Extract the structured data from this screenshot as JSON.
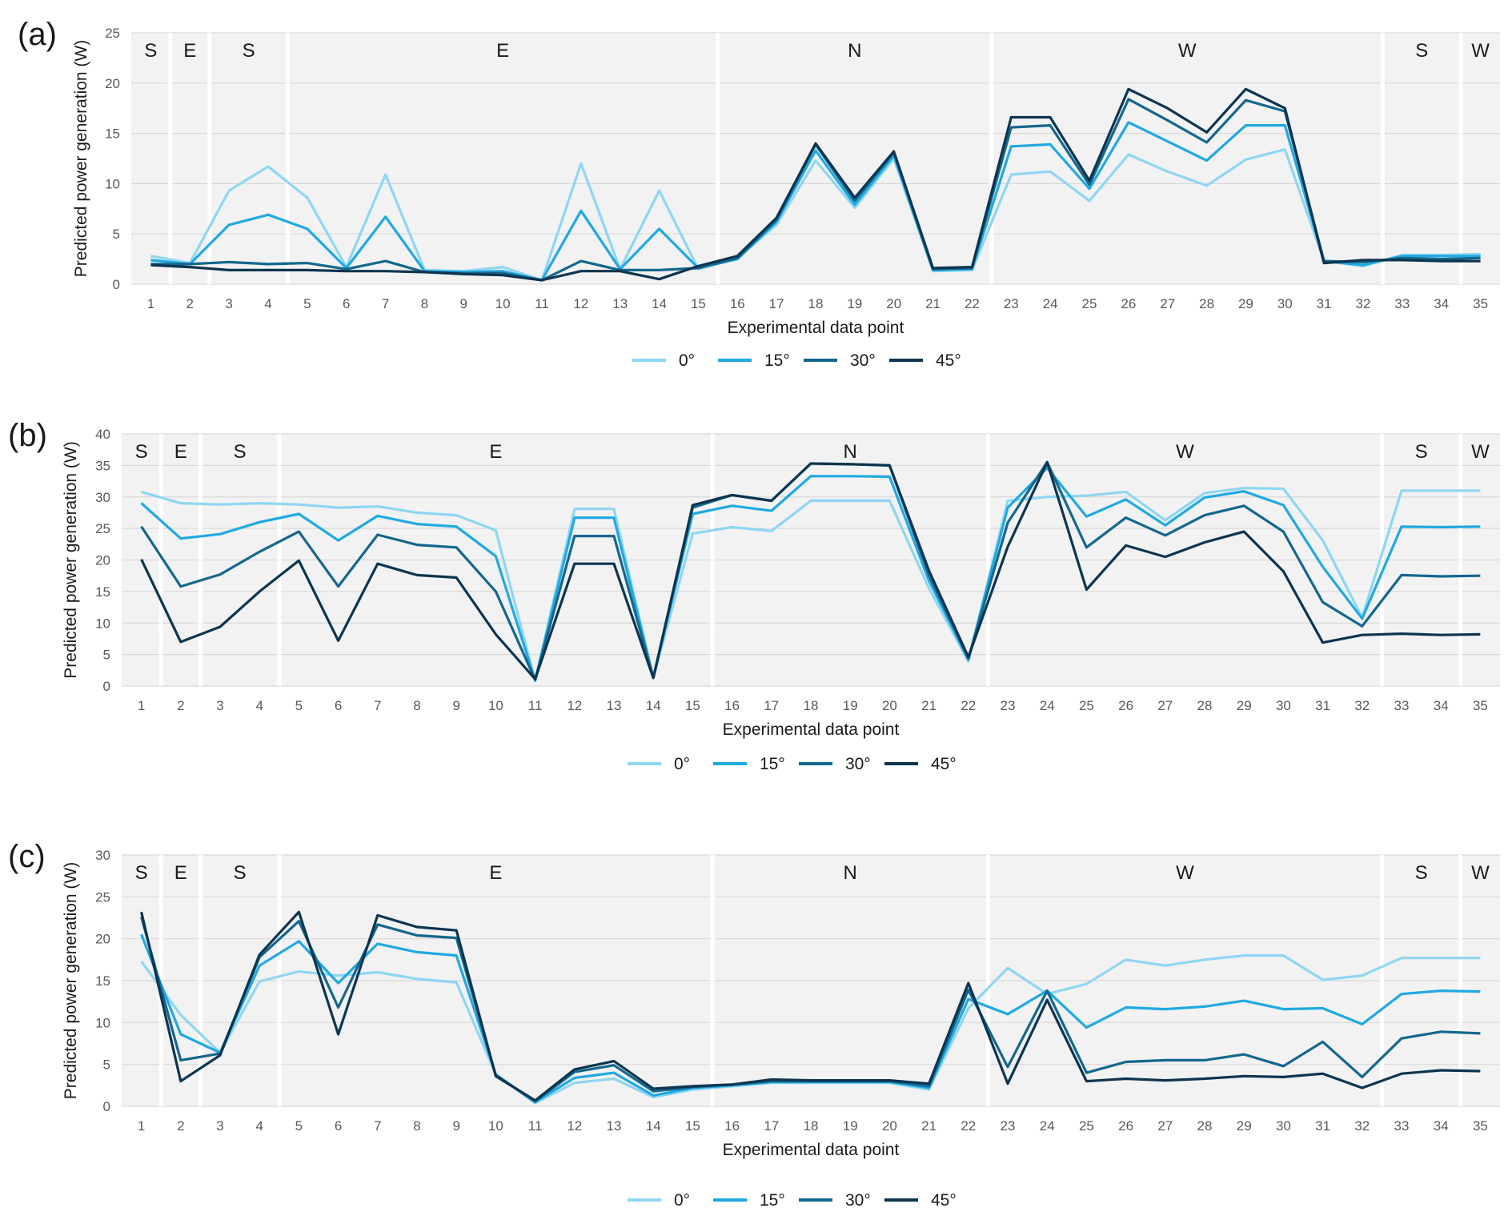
{
  "figure": {
    "legend_labels": [
      "0°",
      "15°",
      "30°",
      "45°"
    ],
    "colors": {
      "series": [
        "#8fd6f2",
        "#20a9e1",
        "#14678c",
        "#0d3550"
      ],
      "shade": "#f2f2f2",
      "grid": "#d9d9d9",
      "text": "#595959"
    }
  },
  "chart_data": [
    {
      "panel_label": "(a)",
      "type": "line",
      "xlabel": "Experimental data point",
      "ylabel": "Predicted power generation (W)",
      "ylim": [
        0,
        25
      ],
      "yticks": [
        0,
        5,
        10,
        15,
        20,
        25
      ],
      "grid": true,
      "legend": "bottom",
      "categories": [
        1,
        2,
        3,
        4,
        5,
        6,
        7,
        8,
        9,
        10,
        11,
        12,
        13,
        14,
        15,
        16,
        17,
        18,
        19,
        20,
        21,
        22,
        23,
        24,
        25,
        26,
        27,
        28,
        29,
        30,
        31,
        32,
        33,
        34,
        35
      ],
      "orientation_regions": [
        {
          "label": "S",
          "from": 1,
          "to": 2
        },
        {
          "label": "E",
          "from": 2,
          "to": 3
        },
        {
          "label": "S",
          "from": 3,
          "to": 5
        },
        {
          "label": "E",
          "from": 5,
          "to": 16
        },
        {
          "label": "N",
          "from": 16,
          "to": 23
        },
        {
          "label": "W",
          "from": 23,
          "to": 33
        },
        {
          "label": "S",
          "from": 33,
          "to": 35
        },
        {
          "label": "W",
          "from": 35,
          "to": 35
        }
      ],
      "series": [
        {
          "name": "0°",
          "values": [
            2.8,
            2.1,
            9.3,
            11.7,
            8.6,
            1.7,
            10.9,
            1.4,
            1.3,
            1.7,
            0.4,
            12.0,
            1.5,
            9.3,
            1.5,
            2.6,
            5.9,
            12.3,
            7.6,
            12.5,
            1.3,
            1.4,
            10.9,
            11.2,
            8.3,
            12.9,
            11.2,
            9.8,
            12.4,
            13.4,
            2.3,
            1.8,
            2.9,
            2.9,
            3.0
          ]
        },
        {
          "name": "15°",
          "values": [
            2.4,
            2.0,
            5.9,
            6.9,
            5.5,
            1.6,
            6.7,
            1.3,
            1.2,
            1.3,
            0.4,
            7.3,
            1.5,
            5.5,
            1.6,
            2.5,
            6.2,
            13.3,
            7.9,
            12.8,
            1.4,
            1.5,
            13.7,
            13.9,
            9.5,
            16.1,
            14.2,
            12.3,
            15.8,
            15.8,
            2.3,
            1.9,
            2.8,
            2.8,
            2.8
          ]
        },
        {
          "name": "30°",
          "values": [
            2.0,
            2.0,
            2.2,
            2.0,
            2.1,
            1.5,
            2.3,
            1.2,
            1.1,
            1.1,
            0.4,
            2.3,
            1.4,
            1.4,
            1.6,
            2.6,
            6.4,
            13.9,
            8.3,
            13.1,
            1.5,
            1.6,
            15.6,
            15.8,
            9.9,
            18.4,
            16.3,
            14.1,
            18.3,
            17.2,
            2.3,
            2.2,
            2.6,
            2.5,
            2.6
          ]
        },
        {
          "name": "45°",
          "values": [
            1.9,
            1.7,
            1.4,
            1.4,
            1.4,
            1.3,
            1.3,
            1.2,
            1.0,
            0.9,
            0.4,
            1.3,
            1.3,
            0.5,
            1.8,
            2.8,
            6.6,
            14.0,
            8.6,
            13.2,
            1.6,
            1.7,
            16.6,
            16.6,
            10.3,
            19.4,
            17.5,
            15.1,
            19.4,
            17.5,
            2.1,
            2.4,
            2.4,
            2.3,
            2.3
          ]
        }
      ]
    },
    {
      "panel_label": "(b)",
      "type": "line",
      "xlabel": "Experimental data point",
      "ylabel": "Predicted power generation (W)",
      "ylim": [
        0,
        40
      ],
      "yticks": [
        0,
        5,
        10,
        15,
        20,
        25,
        30,
        35,
        40
      ],
      "grid": true,
      "legend": "bottom",
      "categories": [
        1,
        2,
        3,
        4,
        5,
        6,
        7,
        8,
        9,
        10,
        11,
        12,
        13,
        14,
        15,
        16,
        17,
        18,
        19,
        20,
        21,
        22,
        23,
        24,
        25,
        26,
        27,
        28,
        29,
        30,
        31,
        32,
        33,
        34,
        35
      ],
      "orientation_regions": [
        {
          "label": "S",
          "from": 1,
          "to": 2
        },
        {
          "label": "E",
          "from": 2,
          "to": 3
        },
        {
          "label": "S",
          "from": 3,
          "to": 5
        },
        {
          "label": "E",
          "from": 5,
          "to": 16
        },
        {
          "label": "N",
          "from": 16,
          "to": 23
        },
        {
          "label": "W",
          "from": 23,
          "to": 33
        },
        {
          "label": "S",
          "from": 33,
          "to": 35
        },
        {
          "label": "W",
          "from": 35,
          "to": 35
        }
      ],
      "series": [
        {
          "name": "0°",
          "values": [
            30.8,
            29.0,
            28.8,
            29.0,
            28.8,
            28.3,
            28.5,
            27.5,
            27.1,
            24.7,
            0.8,
            28.1,
            28.1,
            1.3,
            24.2,
            25.2,
            24.6,
            29.4,
            29.4,
            29.4,
            15.5,
            3.9,
            29.4,
            30.0,
            30.2,
            30.8,
            26.3,
            30.6,
            31.4,
            31.3,
            23.1,
            10.9,
            31.0,
            31.0,
            31.0
          ]
        },
        {
          "name": "15°",
          "values": [
            29.0,
            23.4,
            24.1,
            26.0,
            27.3,
            23.1,
            27.0,
            25.7,
            25.3,
            20.6,
            0.9,
            26.7,
            26.7,
            1.3,
            27.3,
            28.6,
            27.8,
            33.3,
            33.3,
            33.2,
            16.7,
            4.2,
            28.3,
            34.6,
            26.9,
            29.6,
            25.5,
            29.9,
            30.9,
            28.7,
            18.9,
            10.7,
            25.3,
            25.2,
            25.3
          ]
        },
        {
          "name": "30°",
          "values": [
            25.3,
            15.8,
            17.7,
            21.3,
            24.5,
            15.8,
            24.0,
            22.4,
            22.0,
            15.0,
            1.0,
            23.8,
            23.8,
            1.3,
            28.3,
            30.3,
            29.4,
            35.3,
            35.2,
            35.0,
            17.6,
            4.4,
            25.9,
            35.5,
            22.0,
            26.7,
            23.9,
            27.1,
            28.6,
            24.5,
            13.3,
            9.5,
            17.6,
            17.4,
            17.5
          ]
        },
        {
          "name": "45°",
          "values": [
            20.1,
            7.0,
            9.4,
            15.0,
            19.9,
            7.2,
            19.4,
            17.6,
            17.2,
            8.2,
            1.1,
            19.4,
            19.4,
            1.3,
            28.7,
            30.3,
            29.4,
            35.3,
            35.2,
            35.0,
            18.3,
            4.6,
            22.1,
            35.5,
            15.3,
            22.3,
            20.5,
            22.8,
            24.5,
            18.2,
            6.9,
            8.1,
            8.3,
            8.1,
            8.2
          ]
        }
      ]
    },
    {
      "panel_label": "(c)",
      "type": "line",
      "xlabel": "Experimental data point",
      "ylabel": "Predicted power generation (W)",
      "ylim": [
        0,
        30
      ],
      "yticks": [
        0,
        5,
        10,
        15,
        20,
        25,
        30
      ],
      "grid": true,
      "legend": "bottom",
      "categories": [
        1,
        2,
        3,
        4,
        5,
        6,
        7,
        8,
        9,
        10,
        11,
        12,
        13,
        14,
        15,
        16,
        17,
        18,
        19,
        20,
        21,
        22,
        23,
        24,
        25,
        26,
        27,
        28,
        29,
        30,
        31,
        32,
        33,
        34,
        35
      ],
      "orientation_regions": [
        {
          "label": "S",
          "from": 1,
          "to": 2
        },
        {
          "label": "E",
          "from": 2,
          "to": 3
        },
        {
          "label": "S",
          "from": 3,
          "to": 5
        },
        {
          "label": "E",
          "from": 5,
          "to": 16
        },
        {
          "label": "N",
          "from": 16,
          "to": 23
        },
        {
          "label": "W",
          "from": 23,
          "to": 33
        },
        {
          "label": "S",
          "from": 33,
          "to": 35
        },
        {
          "label": "W",
          "from": 35,
          "to": 35
        }
      ],
      "series": [
        {
          "name": "0°",
          "values": [
            17.3,
            10.9,
            6.4,
            14.9,
            16.1,
            15.6,
            16.0,
            15.2,
            14.8,
            3.8,
            0.4,
            2.8,
            3.3,
            1.1,
            2.0,
            2.4,
            2.8,
            2.8,
            2.8,
            2.8,
            2.0,
            11.7,
            16.5,
            13.4,
            14.6,
            17.5,
            16.8,
            17.5,
            18.0,
            18.0,
            15.1,
            15.6,
            17.7,
            17.7,
            17.7
          ]
        },
        {
          "name": "15°",
          "values": [
            20.5,
            8.6,
            6.4,
            16.8,
            19.7,
            14.7,
            19.4,
            18.4,
            18.0,
            3.8,
            0.5,
            3.4,
            4.0,
            1.3,
            2.2,
            2.5,
            2.9,
            2.9,
            2.9,
            2.9,
            2.2,
            12.8,
            11.0,
            13.8,
            9.4,
            11.8,
            11.6,
            11.9,
            12.6,
            11.6,
            11.7,
            9.8,
            13.4,
            13.8,
            13.7
          ]
        },
        {
          "name": "30°",
          "values": [
            22.6,
            5.5,
            6.3,
            17.8,
            22.1,
            11.8,
            21.7,
            20.4,
            20.1,
            3.7,
            0.6,
            4.1,
            4.9,
            1.8,
            2.3,
            2.6,
            3.0,
            3.0,
            3.0,
            3.0,
            2.4,
            13.9,
            4.7,
            13.8,
            4.0,
            5.3,
            5.5,
            5.5,
            6.2,
            4.8,
            7.7,
            3.5,
            8.1,
            8.9,
            8.7
          ]
        },
        {
          "name": "45°",
          "values": [
            23.2,
            3.0,
            6.1,
            18.1,
            23.2,
            8.6,
            22.8,
            21.4,
            21.0,
            3.6,
            0.7,
            4.4,
            5.4,
            2.1,
            2.4,
            2.6,
            3.2,
            3.1,
            3.1,
            3.1,
            2.7,
            14.7,
            2.7,
            12.7,
            3.0,
            3.3,
            3.1,
            3.3,
            3.6,
            3.5,
            3.9,
            2.2,
            3.9,
            4.3,
            4.2
          ]
        }
      ]
    }
  ]
}
